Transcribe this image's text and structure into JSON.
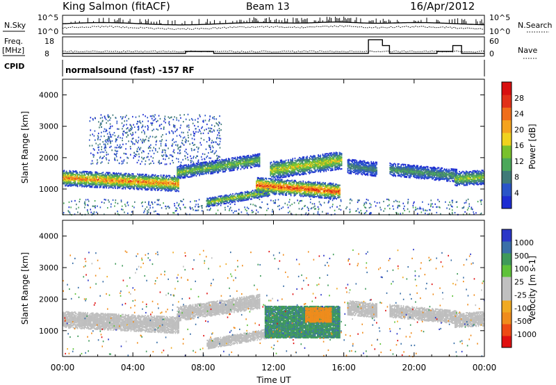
{
  "header": {
    "station": "King Salmon (fitACF)",
    "beam": "Beam 13",
    "date": "16/Apr/2012"
  },
  "aux": {
    "nsky_label": "N.Sky",
    "nsky_ticks": [
      "10^5",
      "10^0"
    ],
    "nsearch_label": "N.Search",
    "freq_label": "Freq.",
    "freq_unit": "[MHz]",
    "freq_ticks": [
      "18",
      "8"
    ],
    "nave_label": "Nave",
    "nave_ticks": [
      "60",
      "0"
    ],
    "cpid_label": "CPID",
    "cpid_text": "normalsound (fast) -157 RF"
  },
  "colors": {
    "power": [
      "#1e2dd2",
      "#2a55c8",
      "#3f7a78",
      "#4ba85a",
      "#79c12c",
      "#f0d21e",
      "#f5a31e",
      "#f06e1a",
      "#e23018",
      "#d80f0f"
    ],
    "velocity": [
      "#e01010",
      "#ee4a14",
      "#f08c1c",
      "#f0aa22",
      "#c0c0c0",
      "#c0c0c0",
      "#5fc23a",
      "#3f9a5a",
      "#3a6fa8",
      "#2a36c8"
    ],
    "ground_scatter": "#bebebe"
  },
  "chart_data": [
    {
      "type": "heatmap",
      "name": "power",
      "ylabel": "Slant Range [km]",
      "ylim": [
        180,
        4500
      ],
      "yticks": [
        "1000",
        "2000",
        "3000",
        "4000"
      ],
      "colorbar_label": "Power [dB]",
      "colorbar_ticks": [
        "4",
        "8",
        "12",
        "16",
        "20",
        "24",
        "28"
      ],
      "xlim_hours": [
        0,
        24
      ],
      "features": [
        {
          "kind": "band",
          "x": [
            0,
            6.6
          ],
          "center_km": [
            1380,
            1200
          ],
          "width_km": 250,
          "peak_db": 24
        },
        {
          "kind": "band",
          "x": [
            6.5,
            11.2
          ],
          "center_km": [
            1550,
            1950
          ],
          "width_km": 200,
          "peak_db": 14
        },
        {
          "kind": "band",
          "x": [
            8.2,
            11.8
          ],
          "center_km": [
            600,
            950
          ],
          "width_km": 140,
          "peak_db": 16
        },
        {
          "kind": "band",
          "x": [
            11.0,
            15.8
          ],
          "center_km": [
            1150,
            950
          ],
          "width_km": 250,
          "peak_db": 28
        },
        {
          "kind": "band",
          "x": [
            11.8,
            15.9
          ],
          "center_km": [
            1620,
            1950
          ],
          "width_km": 280,
          "peak_db": 18
        },
        {
          "kind": "band",
          "x": [
            16.2,
            17.9
          ],
          "center_km": [
            1750,
            1650
          ],
          "width_km": 220,
          "peak_db": 8
        },
        {
          "kind": "band",
          "x": [
            18.6,
            22.4
          ],
          "center_km": [
            1650,
            1450
          ],
          "width_km": 200,
          "peak_db": 10
        },
        {
          "kind": "band",
          "x": [
            22.3,
            24
          ],
          "center_km": [
            1350,
            1400
          ],
          "width_km": 220,
          "peak_db": 16
        },
        {
          "kind": "scatter",
          "x": [
            1.5,
            9.0
          ],
          "range_km": [
            1800,
            3400
          ],
          "peak_db": 8
        }
      ]
    },
    {
      "type": "heatmap",
      "name": "velocity",
      "ylabel": "Slant Range [km]",
      "xlabel": "Time UT",
      "ylim": [
        180,
        4500
      ],
      "yticks": [
        "1000",
        "2000",
        "3000",
        "4000"
      ],
      "colorbar_label": "Velocity [m s-1]",
      "colorbar_ticks": [
        "1000",
        "500",
        "100",
        "25",
        "-25",
        "-100",
        "-500",
        "-1000"
      ],
      "xlim_hours": [
        0,
        24
      ],
      "xticks": [
        "00:00",
        "04:00",
        "08:00",
        "12:00",
        "16:00",
        "20:00",
        "00:00"
      ],
      "features": [
        {
          "kind": "ground",
          "x": [
            0,
            6.6
          ],
          "center_km": [
            1380,
            1200
          ],
          "width_km": 260
        },
        {
          "kind": "ground",
          "x": [
            6.5,
            11.2
          ],
          "center_km": [
            1550,
            1950
          ],
          "width_km": 220
        },
        {
          "kind": "ground",
          "x": [
            8.2,
            11.8
          ],
          "center_km": [
            600,
            950
          ],
          "width_km": 150
        },
        {
          "kind": "ground",
          "x": [
            16.2,
            17.9
          ],
          "center_km": [
            1750,
            1650
          ],
          "width_km": 220
        },
        {
          "kind": "ground",
          "x": [
            18.6,
            22.4
          ],
          "center_km": [
            1650,
            1450
          ],
          "width_km": 200
        },
        {
          "kind": "ground",
          "x": [
            22.3,
            24
          ],
          "center_km": [
            1350,
            1400
          ],
          "width_km": 220
        },
        {
          "kind": "ionospheric",
          "x": [
            11.5,
            15.8
          ],
          "range_km": [
            800,
            1800
          ],
          "velocity_ms": [
            100,
            300
          ]
        },
        {
          "kind": "ionospheric",
          "x": [
            13.8,
            15.3
          ],
          "range_km": [
            1300,
            1750
          ],
          "velocity_ms": [
            -150,
            -100
          ]
        }
      ]
    }
  ]
}
